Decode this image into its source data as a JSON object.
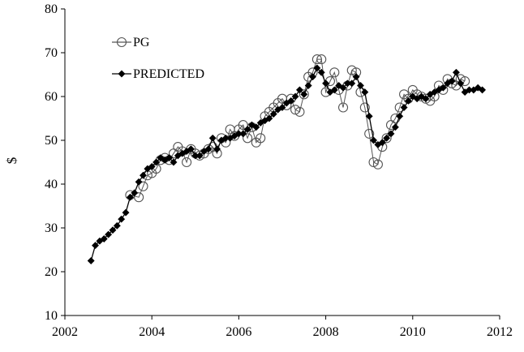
{
  "chart_data": {
    "type": "line",
    "title": "",
    "xlabel": "",
    "ylabel": "$",
    "xlim": [
      2002,
      2012
    ],
    "ylim": [
      10,
      80
    ],
    "x_ticks": [
      2002,
      2004,
      2006,
      2008,
      2010,
      2012
    ],
    "y_ticks": [
      10,
      20,
      30,
      40,
      50,
      60,
      70,
      80
    ],
    "grid": false,
    "legend": {
      "placement": "top-left"
    },
    "series": [
      {
        "name": "PG",
        "marker": "open-circle",
        "color": "#555555",
        "x": [
          2003.5,
          2003.7,
          2003.8,
          2003.9,
          2004.0,
          2004.1,
          2004.2,
          2004.3,
          2004.4,
          2004.5,
          2004.6,
          2004.7,
          2004.8,
          2004.9,
          2005.0,
          2005.1,
          2005.2,
          2005.3,
          2005.4,
          2005.5,
          2005.6,
          2005.7,
          2005.8,
          2005.9,
          2006.0,
          2006.1,
          2006.2,
          2006.3,
          2006.4,
          2006.5,
          2006.6,
          2006.7,
          2006.8,
          2006.9,
          2007.0,
          2007.1,
          2007.2,
          2007.3,
          2007.4,
          2007.5,
          2007.6,
          2007.7,
          2007.8,
          2007.9,
          2008.0,
          2008.1,
          2008.2,
          2008.3,
          2008.4,
          2008.5,
          2008.6,
          2008.7,
          2008.8,
          2008.9,
          2009.0,
          2009.1,
          2009.2,
          2009.3,
          2009.4,
          2009.5,
          2009.6,
          2009.7,
          2009.8,
          2009.9,
          2010.0,
          2010.1,
          2010.2,
          2010.3,
          2010.4,
          2010.5,
          2010.6,
          2010.7,
          2010.8,
          2010.9,
          2011.0,
          2011.1,
          2011.2
        ],
        "y": [
          37.5,
          37.0,
          39.5,
          42.0,
          42.5,
          43.5,
          45.5,
          46.0,
          45.5,
          47.0,
          48.5,
          47.5,
          45.0,
          48.0,
          47.0,
          46.5,
          47.0,
          48.0,
          48.5,
          47.0,
          50.5,
          49.5,
          52.5,
          51.0,
          52.5,
          53.5,
          50.5,
          53.0,
          49.5,
          50.5,
          55.5,
          56.5,
          57.5,
          58.5,
          59.5,
          58.0,
          59.5,
          57.0,
          56.5,
          60.5,
          64.5,
          65.5,
          68.5,
          68.5,
          61.0,
          63.5,
          65.5,
          61.5,
          57.5,
          62.5,
          66.0,
          65.5,
          61.0,
          57.5,
          51.5,
          45.0,
          44.5,
          48.5,
          50.5,
          53.5,
          55.0,
          57.5,
          60.5,
          59.5,
          61.5,
          60.5,
          60.0,
          59.5,
          59.0,
          60.0,
          62.5,
          61.5,
          64.0,
          63.0,
          62.5,
          64.0,
          63.5
        ]
      },
      {
        "name": "PREDICTED",
        "marker": "filled-diamond",
        "color": "#000000",
        "x": [
          2002.6,
          2002.7,
          2002.8,
          2002.9,
          2003.0,
          2003.1,
          2003.2,
          2003.3,
          2003.4,
          2003.5,
          2003.6,
          2003.7,
          2003.8,
          2003.9,
          2004.0,
          2004.1,
          2004.2,
          2004.3,
          2004.4,
          2004.5,
          2004.6,
          2004.7,
          2004.8,
          2004.9,
          2005.0,
          2005.1,
          2005.2,
          2005.3,
          2005.4,
          2005.5,
          2005.6,
          2005.7,
          2005.8,
          2005.9,
          2006.0,
          2006.1,
          2006.2,
          2006.3,
          2006.4,
          2006.5,
          2006.6,
          2006.7,
          2006.8,
          2006.9,
          2007.0,
          2007.1,
          2007.2,
          2007.3,
          2007.4,
          2007.5,
          2007.6,
          2007.7,
          2007.8,
          2007.9,
          2008.0,
          2008.1,
          2008.2,
          2008.3,
          2008.4,
          2008.5,
          2008.6,
          2008.7,
          2008.8,
          2008.9,
          2009.0,
          2009.1,
          2009.2,
          2009.3,
          2009.4,
          2009.5,
          2009.6,
          2009.7,
          2009.8,
          2009.9,
          2010.0,
          2010.1,
          2010.2,
          2010.3,
          2010.4,
          2010.5,
          2010.6,
          2010.7,
          2010.8,
          2010.9,
          2011.0,
          2011.1,
          2011.2,
          2011.3,
          2011.4,
          2011.5,
          2011.6
        ],
        "y": [
          22.5,
          26.0,
          27.0,
          27.5,
          28.5,
          29.5,
          30.5,
          32.0,
          33.5,
          37.0,
          38.0,
          40.5,
          42.0,
          43.5,
          44.0,
          45.0,
          46.0,
          45.5,
          46.0,
          45.0,
          46.5,
          47.0,
          47.5,
          48.0,
          46.5,
          46.5,
          47.5,
          48.0,
          50.5,
          48.0,
          50.0,
          50.5,
          50.5,
          51.0,
          51.5,
          51.5,
          52.5,
          53.5,
          53.0,
          54.0,
          54.5,
          55.0,
          56.0,
          57.0,
          57.5,
          58.5,
          59.0,
          60.0,
          61.5,
          60.5,
          62.5,
          64.5,
          66.5,
          65.5,
          63.0,
          61.0,
          61.5,
          62.5,
          62.0,
          63.0,
          63.0,
          64.5,
          62.5,
          61.0,
          55.5,
          50.0,
          49.0,
          49.5,
          50.5,
          51.5,
          53.0,
          55.5,
          57.5,
          59.0,
          60.0,
          59.5,
          60.0,
          59.5,
          60.5,
          61.0,
          61.5,
          62.0,
          63.0,
          63.5,
          65.5,
          63.0,
          61.0,
          61.5,
          61.5,
          62.0,
          61.5
        ]
      }
    ]
  }
}
